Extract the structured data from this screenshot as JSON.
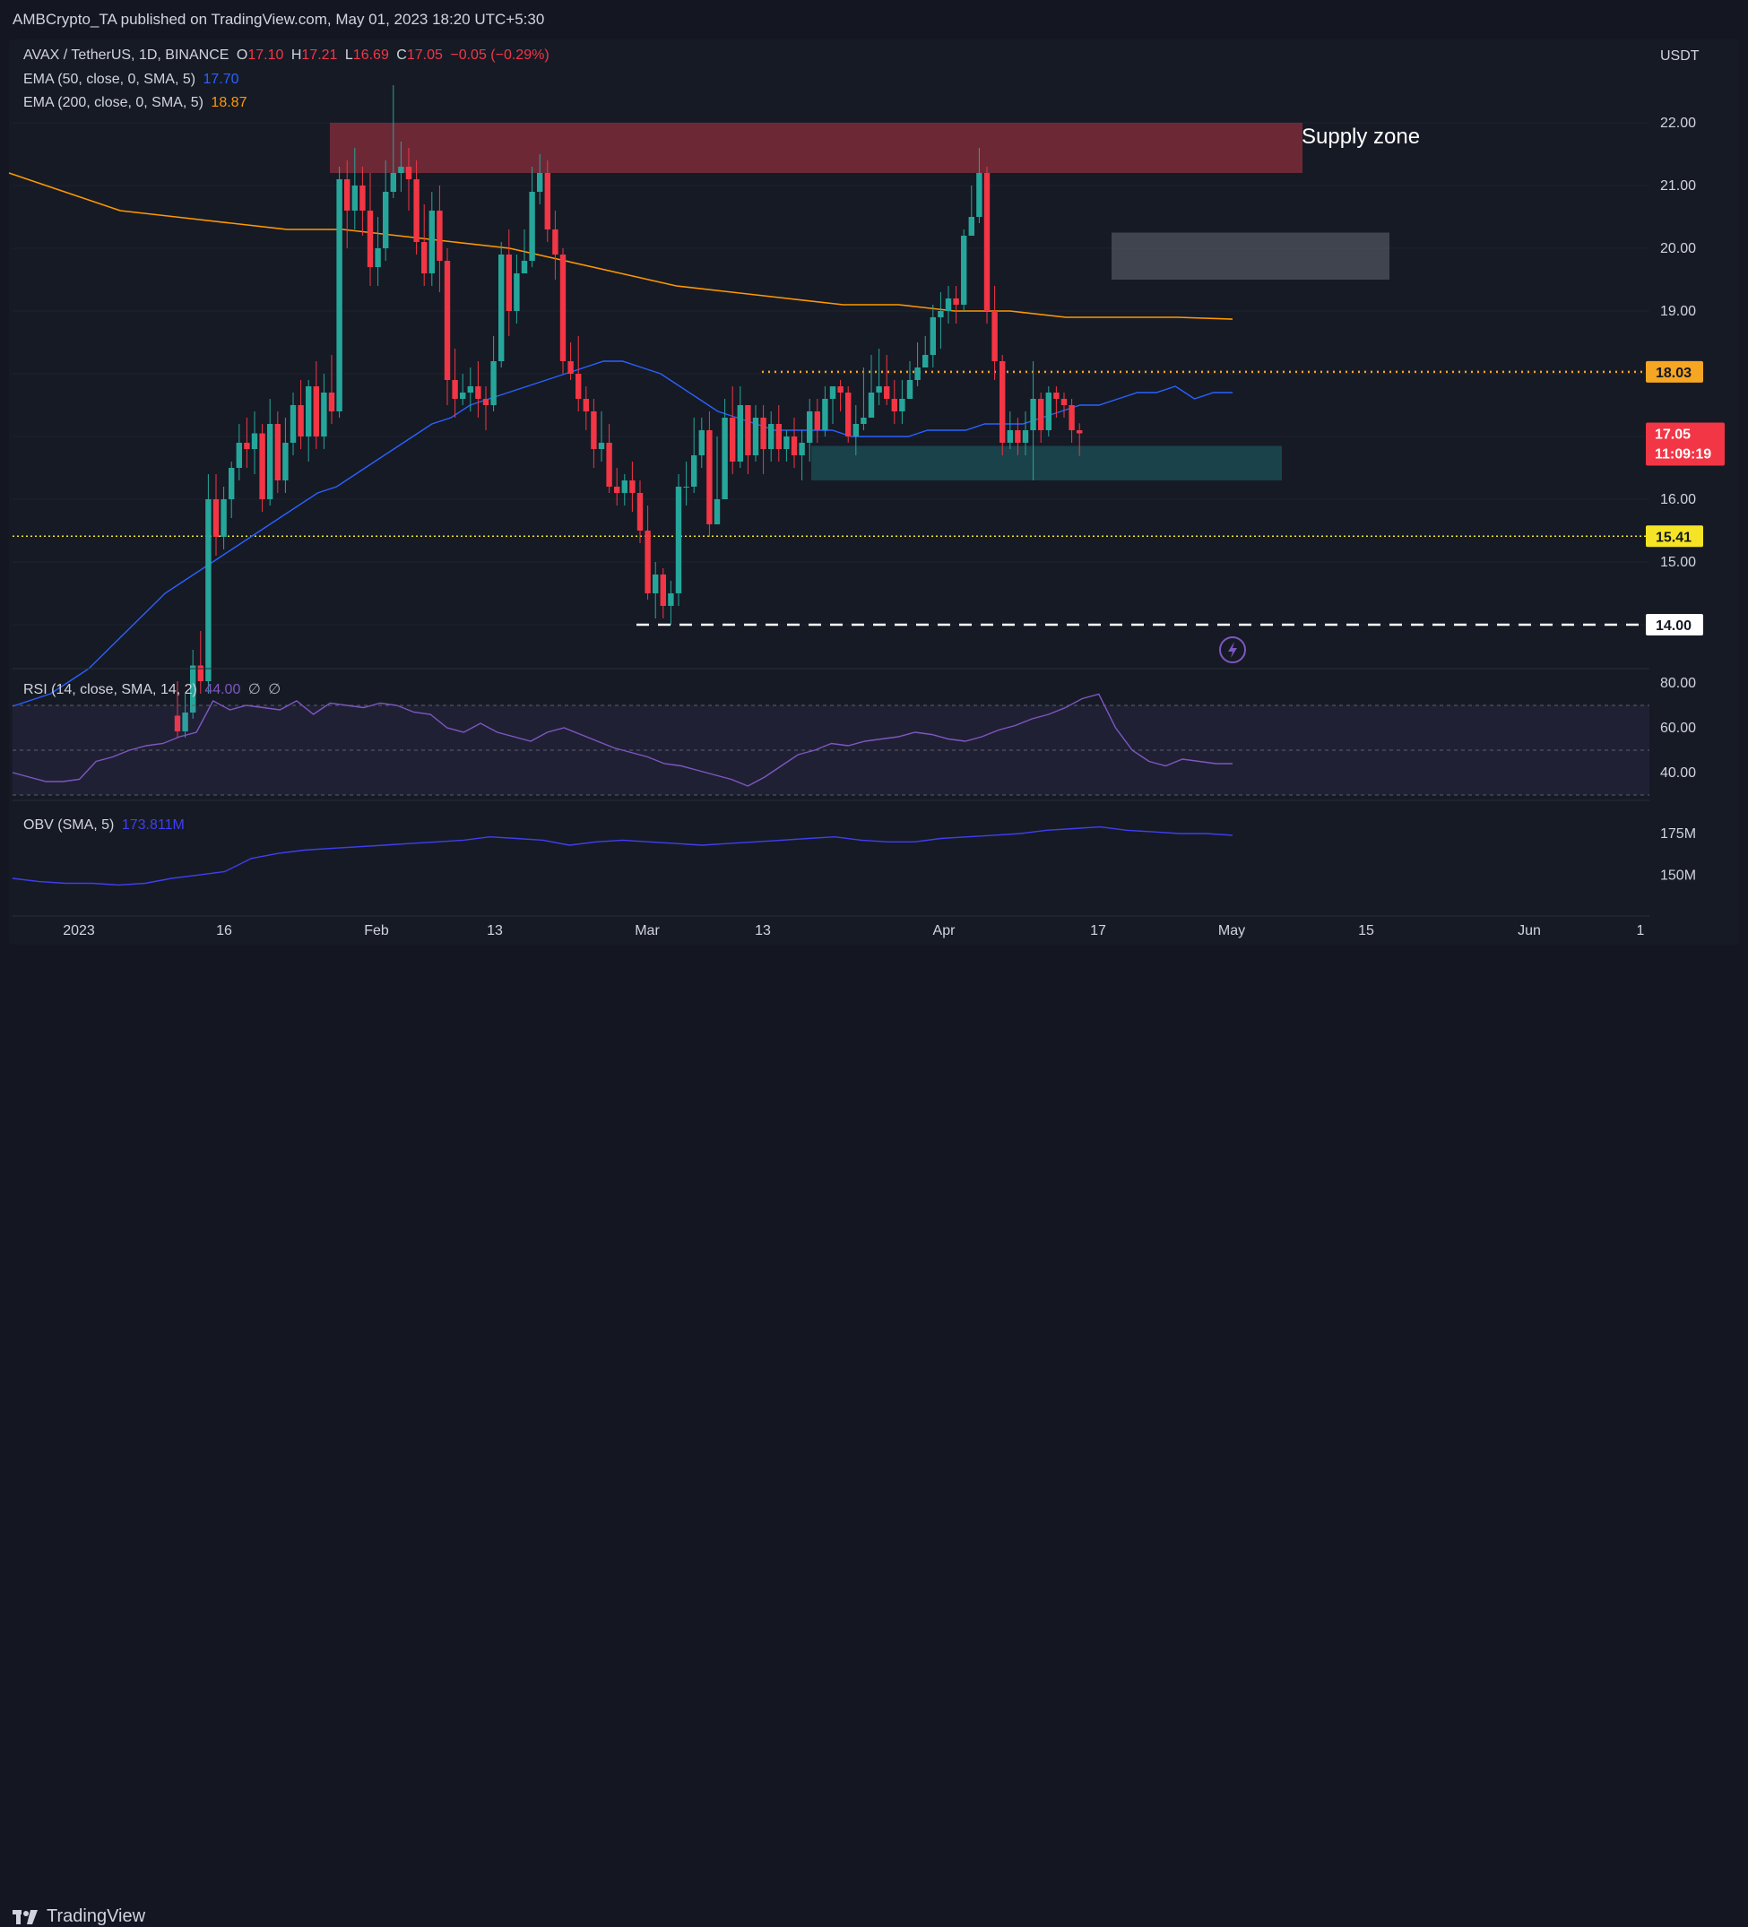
{
  "header": {
    "published": "AMBCrypto_TA published on TradingView.com, May 01, 2023 18:20 UTC+5:30"
  },
  "legend": {
    "symbol": "AVAX / TetherUS, 1D, BINANCE",
    "o_label": "O",
    "o_value": "17.10",
    "h_label": "H",
    "h_value": "17.21",
    "l_label": "L",
    "l_value": "16.69",
    "c_label": "C",
    "c_value": "17.05",
    "change": "−0.05 (−0.29%)",
    "ema50_label": "EMA (50, close, 0, SMA, 5)",
    "ema50_value": "17.70",
    "ema200_label": "EMA (200, close, 0, SMA, 5)",
    "ema200_value": "18.87",
    "rsi_label": "RSI (14, close, SMA, 14, 2)",
    "rsi_value": "44.00",
    "rsi_extra1": "∅",
    "rsi_extra2": "∅",
    "obv_label": "OBV (SMA, 5)",
    "obv_value": "173.811M"
  },
  "price_axis": {
    "currency": "USDT",
    "ticks": [
      "22.00",
      "21.00",
      "20.00",
      "19.00",
      "15.00"
    ],
    "tag_1803": "18.03",
    "tag_current": "17.05",
    "tag_countdown": "11:09:19",
    "tag_16": "16.00",
    "tag_1541": "15.41",
    "tag_14": "14.00"
  },
  "rsi_axis": {
    "ticks": [
      "80.00",
      "60.00",
      "40.00"
    ]
  },
  "obv_axis": {
    "ticks": [
      "175M",
      "150M"
    ]
  },
  "time_axis": {
    "labels": [
      "2023",
      "16",
      "Feb",
      "13",
      "Mar",
      "13",
      "Apr",
      "17",
      "May",
      "15",
      "Jun",
      "1"
    ]
  },
  "annotations": {
    "supply_zone": "Supply zone"
  },
  "colors": {
    "up": "#26a69a",
    "down": "#f23645",
    "ema50": "#2962ff",
    "ema200": "#ff9800",
    "supply_zone": "#8b2e3c",
    "grey_zone": "#5d606b",
    "demand_zone": "#1a4a52",
    "rsi": "#7e57c2",
    "obv": "#3f3ff2",
    "level_1803": "#f5a623",
    "level_1541": "#f5e425",
    "level_14": "#ffffff"
  },
  "footer": {
    "brand": "TradingView"
  },
  "chart_data": {
    "type": "candlestick",
    "symbol": "AVAX / TetherUS",
    "interval": "1D",
    "exchange": "BINANCE",
    "x_start": "2023-01-07",
    "candles": [
      [
        12.55,
        12.3,
        13.1,
        12.2
      ],
      [
        12.3,
        12.6,
        12.9,
        12.2
      ],
      [
        12.6,
        13.35,
        13.6,
        12.5
      ],
      [
        13.35,
        13.1,
        13.9,
        12.9
      ],
      [
        13.1,
        16.0,
        16.4,
        12.9
      ],
      [
        16.0,
        15.4,
        16.4,
        15.1
      ],
      [
        15.4,
        16.0,
        16.2,
        15.2
      ],
      [
        16.0,
        16.5,
        16.6,
        15.7
      ],
      [
        16.5,
        16.9,
        17.2,
        16.3
      ],
      [
        16.9,
        16.8,
        17.3,
        16.5
      ],
      [
        16.8,
        17.05,
        17.4,
        16.4
      ],
      [
        17.05,
        16.0,
        17.2,
        15.8
      ],
      [
        16.0,
        17.2,
        17.6,
        15.9
      ],
      [
        17.2,
        16.3,
        17.4,
        16.1
      ],
      [
        16.3,
        16.9,
        17.3,
        16.1
      ],
      [
        16.9,
        17.5,
        17.7,
        16.7
      ],
      [
        17.5,
        17.0,
        17.9,
        16.8
      ],
      [
        17.0,
        17.8,
        17.9,
        16.6
      ],
      [
        17.8,
        17.0,
        18.2,
        16.8
      ],
      [
        17.0,
        17.7,
        18.0,
        16.8
      ],
      [
        17.7,
        17.4,
        18.3,
        17.2
      ],
      [
        17.4,
        21.1,
        21.3,
        17.3
      ],
      [
        21.1,
        20.6,
        21.4,
        20.0
      ],
      [
        20.6,
        21.0,
        21.6,
        20.3
      ],
      [
        21.0,
        20.6,
        21.3,
        20.2
      ],
      [
        20.6,
        19.7,
        21.2,
        19.4
      ],
      [
        19.7,
        20.0,
        20.5,
        19.4
      ],
      [
        20.0,
        20.9,
        21.4,
        19.8
      ],
      [
        20.9,
        21.2,
        22.6,
        20.8
      ],
      [
        21.2,
        21.3,
        21.7,
        20.9
      ],
      [
        21.3,
        21.1,
        21.6,
        20.6
      ],
      [
        21.1,
        20.1,
        21.4,
        19.9
      ],
      [
        20.1,
        19.6,
        20.7,
        19.4
      ],
      [
        19.6,
        20.6,
        20.9,
        19.4
      ],
      [
        20.6,
        19.8,
        21.0,
        19.3
      ],
      [
        19.8,
        17.9,
        20.0,
        17.5
      ],
      [
        17.9,
        17.6,
        18.4,
        17.3
      ],
      [
        17.6,
        17.7,
        18.0,
        17.5
      ],
      [
        17.7,
        17.8,
        18.1,
        17.4
      ],
      [
        17.8,
        17.6,
        18.2,
        17.3
      ],
      [
        17.6,
        17.5,
        17.8,
        17.1
      ],
      [
        17.5,
        18.2,
        18.6,
        17.4
      ],
      [
        18.2,
        19.9,
        20.1,
        18.1
      ],
      [
        19.9,
        19.0,
        20.3,
        18.6
      ],
      [
        19.0,
        19.6,
        19.9,
        18.8
      ],
      [
        19.6,
        19.8,
        20.3,
        19.6
      ],
      [
        19.8,
        20.9,
        21.3,
        19.7
      ],
      [
        20.9,
        21.2,
        21.5,
        20.7
      ],
      [
        21.2,
        20.3,
        21.4,
        20.1
      ],
      [
        20.3,
        19.9,
        20.6,
        19.5
      ],
      [
        19.9,
        18.2,
        20.0,
        18.0
      ],
      [
        18.2,
        18.0,
        18.5,
        17.9
      ],
      [
        18.0,
        17.6,
        18.6,
        17.4
      ],
      [
        17.6,
        17.4,
        17.8,
        17.1
      ],
      [
        17.4,
        16.8,
        17.6,
        16.5
      ],
      [
        16.8,
        16.9,
        17.4,
        16.6
      ],
      [
        16.9,
        16.2,
        17.2,
        16.1
      ],
      [
        16.2,
        16.1,
        16.5,
        15.9
      ],
      [
        16.1,
        16.3,
        16.4,
        15.9
      ],
      [
        16.3,
        16.1,
        16.6,
        15.8
      ],
      [
        16.1,
        15.5,
        16.3,
        15.3
      ],
      [
        15.5,
        14.5,
        15.9,
        14.4
      ],
      [
        14.5,
        14.8,
        15.0,
        14.1
      ],
      [
        14.8,
        14.3,
        14.9,
        14.1
      ],
      [
        14.3,
        14.5,
        14.7,
        14.0
      ],
      [
        14.5,
        16.2,
        16.4,
        14.3
      ],
      [
        16.2,
        16.2,
        16.6,
        15.9
      ],
      [
        16.2,
        16.7,
        17.3,
        16.1
      ],
      [
        16.7,
        17.1,
        17.3,
        16.5
      ],
      [
        17.1,
        15.6,
        17.4,
        15.4
      ],
      [
        15.6,
        16.0,
        17.0,
        15.6
      ],
      [
        16.0,
        17.3,
        17.6,
        16.2
      ],
      [
        17.3,
        16.6,
        17.8,
        16.4
      ],
      [
        16.6,
        17.5,
        17.8,
        16.5
      ],
      [
        17.5,
        16.7,
        17.5,
        16.4
      ],
      [
        16.7,
        17.3,
        17.5,
        16.6
      ],
      [
        17.3,
        16.8,
        17.5,
        16.4
      ],
      [
        16.8,
        17.2,
        17.4,
        16.6
      ],
      [
        17.2,
        16.8,
        17.5,
        16.6
      ],
      [
        16.8,
        17.0,
        17.1,
        16.6
      ],
      [
        17.0,
        16.7,
        17.3,
        16.5
      ],
      [
        16.7,
        16.9,
        17.1,
        16.3
      ],
      [
        16.9,
        17.4,
        17.6,
        16.6
      ],
      [
        17.4,
        17.1,
        17.6,
        16.9
      ],
      [
        17.1,
        17.6,
        17.8,
        17.0
      ],
      [
        17.6,
        17.8,
        17.8,
        17.2
      ],
      [
        17.8,
        17.7,
        17.9,
        17.4
      ],
      [
        17.7,
        17.0,
        17.8,
        16.9
      ],
      [
        17.0,
        17.2,
        17.5,
        16.7
      ],
      [
        17.2,
        17.3,
        18.1,
        17.1
      ],
      [
        17.3,
        17.7,
        18.3,
        17.6
      ],
      [
        17.7,
        17.8,
        18.4,
        17.5
      ],
      [
        17.8,
        17.6,
        18.3,
        17.5
      ],
      [
        17.6,
        17.4,
        17.9,
        17.2
      ],
      [
        17.4,
        17.6,
        17.9,
        17.2
      ],
      [
        17.6,
        17.9,
        18.2,
        17.6
      ],
      [
        17.9,
        18.1,
        18.5,
        17.8
      ],
      [
        18.1,
        18.3,
        18.6,
        18.2
      ],
      [
        18.3,
        18.9,
        19.1,
        18.1
      ],
      [
        18.9,
        19.0,
        19.3,
        18.4
      ],
      [
        19.0,
        19.2,
        19.4,
        18.8
      ],
      [
        19.2,
        19.1,
        19.4,
        18.8
      ],
      [
        19.1,
        20.2,
        20.3,
        19.0
      ],
      [
        20.2,
        20.5,
        21.0,
        20.2
      ],
      [
        20.5,
        21.2,
        21.6,
        20.4
      ],
      [
        21.2,
        19.0,
        21.3,
        18.8
      ],
      [
        19.0,
        18.2,
        19.4,
        17.9
      ],
      [
        18.2,
        16.9,
        18.3,
        16.7
      ],
      [
        16.9,
        17.1,
        17.4,
        16.8
      ],
      [
        17.1,
        16.9,
        17.3,
        16.7
      ],
      [
        16.9,
        17.1,
        17.4,
        16.7
      ],
      [
        17.1,
        17.6,
        18.2,
        16.3
      ],
      [
        17.6,
        17.1,
        17.7,
        16.9
      ],
      [
        17.1,
        17.7,
        17.8,
        17.0
      ],
      [
        17.7,
        17.6,
        17.8,
        17.3
      ],
      [
        17.6,
        17.5,
        17.7,
        17.3
      ],
      [
        17.5,
        17.1,
        17.6,
        16.9
      ],
      [
        17.1,
        17.05,
        17.21,
        16.69
      ]
    ],
    "ema50": [
      12.7,
      12.8,
      12.9,
      13.1,
      13.3,
      13.6,
      13.9,
      14.2,
      14.5,
      14.7,
      14.9,
      15.1,
      15.3,
      15.5,
      15.7,
      15.9,
      16.1,
      16.2,
      16.4,
      16.6,
      16.8,
      17.0,
      17.2,
      17.3,
      17.5,
      17.6,
      17.7,
      17.8,
      17.9,
      18.0,
      18.1,
      18.2,
      18.2,
      18.1,
      18.0,
      17.8,
      17.6,
      17.4,
      17.3,
      17.2,
      17.1,
      17.1,
      17.1,
      17.1,
      17.0,
      17.0,
      17.0,
      17.0,
      17.1,
      17.1,
      17.1,
      17.2,
      17.2,
      17.2,
      17.3,
      17.4,
      17.5,
      17.5,
      17.6,
      17.7,
      17.7,
      17.8,
      17.6,
      17.7,
      17.7
    ],
    "ema200": [
      21.2,
      20.9,
      20.6,
      20.5,
      20.4,
      20.3,
      20.3,
      20.2,
      20.1,
      20.0,
      19.8,
      19.6,
      19.4,
      19.3,
      19.2,
      19.1,
      19.1,
      19.0,
      19.0,
      18.9,
      18.9,
      18.9,
      18.87
    ],
    "price_levels": {
      "resistance_dotted": 18.03,
      "support_dotted": 15.41,
      "support_dashed": 14.0
    },
    "zones": {
      "supply": [
        21.2,
        22.0
      ],
      "grey": [
        19.5,
        20.25
      ],
      "demand": [
        16.3,
        16.85
      ]
    },
    "ylim": [
      12.3,
      22.8
    ],
    "rsi": [
      40,
      38,
      36,
      36,
      37,
      45,
      47,
      50,
      52,
      53,
      56,
      58,
      72,
      68,
      70,
      69,
      68,
      72,
      66,
      71,
      70,
      69,
      71,
      70,
      67,
      66,
      60,
      58,
      62,
      58,
      56,
      54,
      58,
      60,
      57,
      54,
      51,
      49,
      47,
      44,
      43,
      41,
      39,
      37,
      34,
      38,
      43,
      48,
      50,
      53,
      52,
      54,
      55,
      56,
      58,
      57,
      55,
      54,
      56,
      59,
      61,
      64,
      66,
      69,
      73,
      75,
      60,
      50,
      45,
      43,
      46,
      45,
      44,
      44
    ],
    "rsi_ylim": [
      25,
      85
    ],
    "obv": [
      148,
      146,
      145,
      145,
      144,
      145,
      148,
      150,
      152,
      160,
      163,
      165,
      166,
      167,
      168,
      169,
      170,
      171,
      173,
      172,
      171,
      168,
      170,
      171,
      170,
      169,
      168,
      169,
      170,
      171,
      172,
      173,
      171,
      170,
      170,
      172,
      173,
      174,
      175,
      177,
      178,
      179,
      177,
      176,
      175,
      175,
      174
    ]
  }
}
